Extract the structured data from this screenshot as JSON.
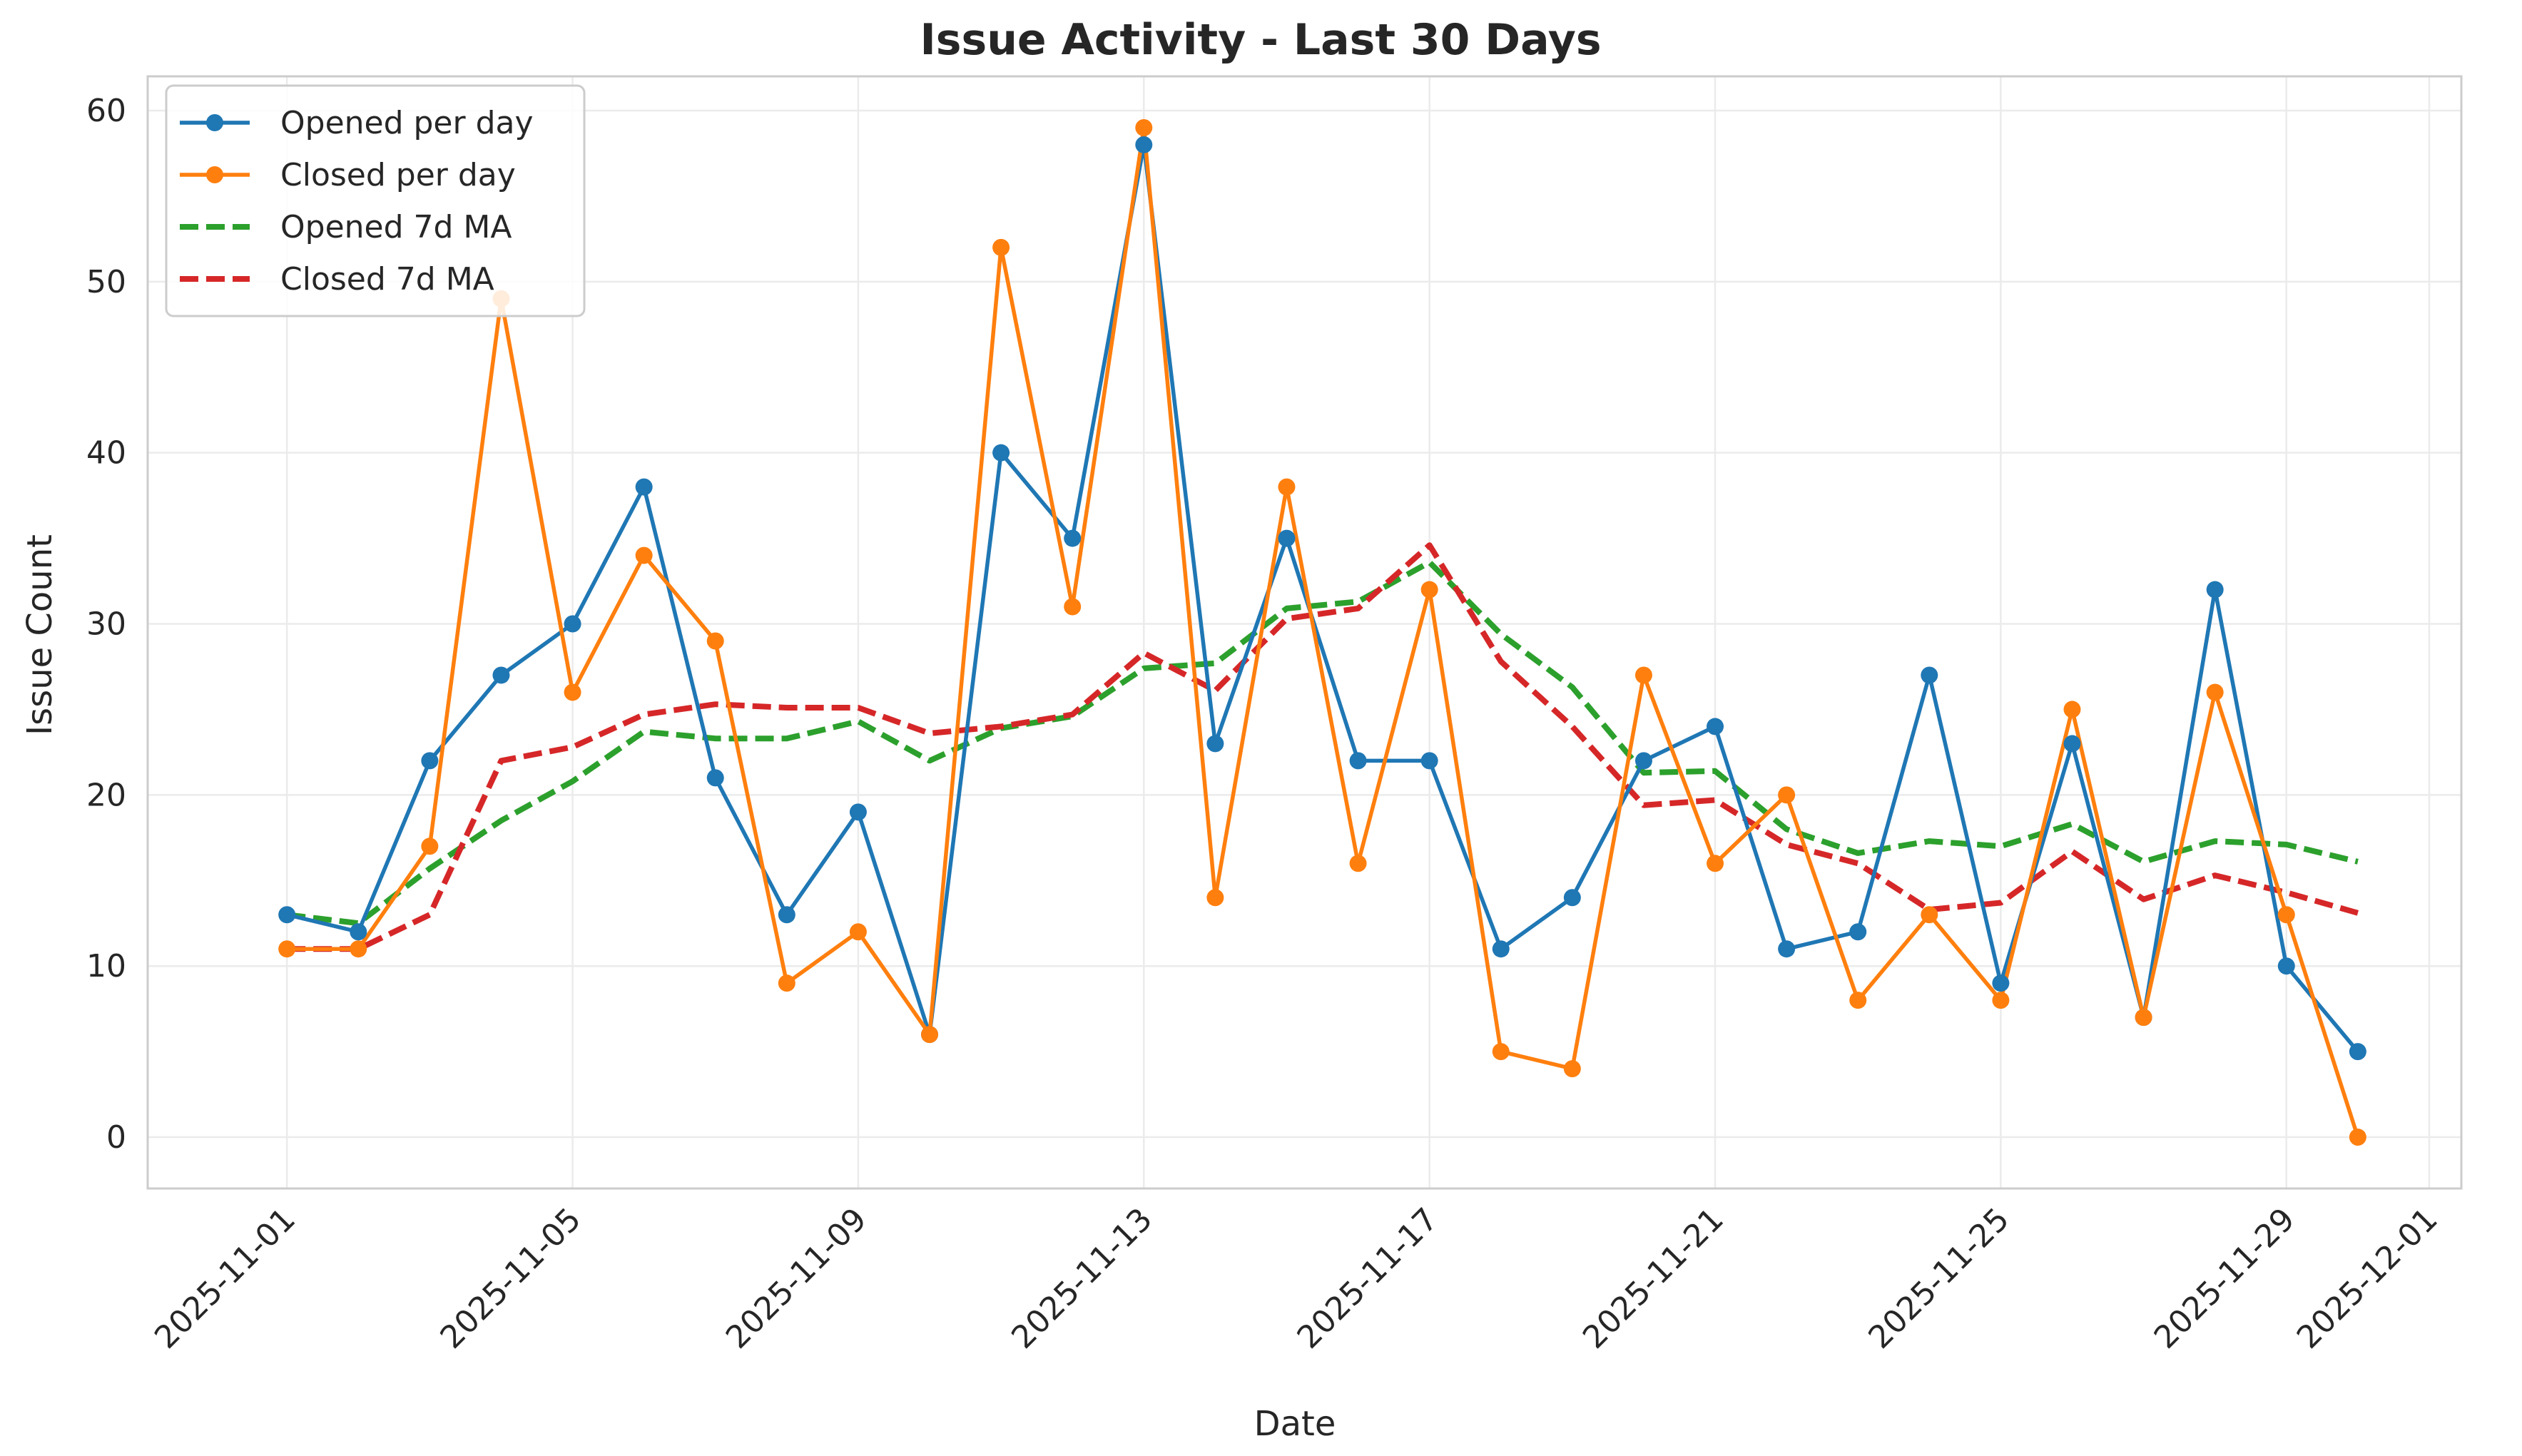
{
  "chart_data": {
    "type": "line",
    "title": "Issue Activity - Last 30 Days",
    "xlabel": "Date",
    "ylabel": "Issue Count",
    "x": [
      "2025-11-01",
      "2025-11-02",
      "2025-11-03",
      "2025-11-04",
      "2025-11-05",
      "2025-11-06",
      "2025-11-07",
      "2025-11-08",
      "2025-11-09",
      "2025-11-10",
      "2025-11-11",
      "2025-11-12",
      "2025-11-13",
      "2025-11-14",
      "2025-11-15",
      "2025-11-16",
      "2025-11-17",
      "2025-11-18",
      "2025-11-19",
      "2025-11-20",
      "2025-11-21",
      "2025-11-22",
      "2025-11-23",
      "2025-11-24",
      "2025-11-25",
      "2025-11-26",
      "2025-11-27",
      "2025-11-28",
      "2025-11-29",
      "2025-11-30"
    ],
    "xticks": [
      "2025-11-01",
      "2025-11-05",
      "2025-11-09",
      "2025-11-13",
      "2025-11-17",
      "2025-11-21",
      "2025-11-25",
      "2025-11-29",
      "2025-12-01"
    ],
    "xlim_days": [
      -1.95,
      30.45
    ],
    "ylim": [
      -3,
      62
    ],
    "yticks": [
      0,
      10,
      20,
      30,
      40,
      50,
      60
    ],
    "grid": true,
    "legend_position": "top-left",
    "series": [
      {
        "name": "Opened per day",
        "color": "#1f77b4",
        "style": "solid-marker",
        "values": [
          13,
          12,
          22,
          27,
          30,
          38,
          21,
          13,
          19,
          6,
          40,
          35,
          58,
          23,
          35,
          22,
          22,
          11,
          14,
          22,
          24,
          11,
          12,
          27,
          9,
          23,
          7,
          32,
          10,
          5
        ]
      },
      {
        "name": "Closed per day",
        "color": "#ff7f0e",
        "style": "solid-marker",
        "values": [
          11,
          11,
          17,
          49,
          26,
          34,
          29,
          9,
          12,
          6,
          52,
          31,
          59,
          14,
          38,
          16,
          32,
          5,
          4,
          27,
          16,
          20,
          8,
          13,
          8,
          25,
          7,
          26,
          13,
          0
        ]
      },
      {
        "name": "Opened 7d MA",
        "color": "#2ca02c",
        "style": "dashed",
        "values": [
          13.0,
          12.5,
          15.7,
          18.5,
          20.8,
          23.7,
          23.3,
          23.3,
          24.3,
          22.0,
          23.9,
          24.6,
          27.4,
          27.7,
          30.9,
          31.3,
          33.6,
          29.4,
          26.3,
          21.3,
          21.4,
          18.0,
          16.6,
          17.3,
          17.0,
          18.3,
          16.1,
          17.3,
          17.1,
          16.1
        ]
      },
      {
        "name": "Closed 7d MA",
        "color": "#d62728",
        "style": "dashed",
        "values": [
          11.0,
          11.0,
          13.0,
          22.0,
          22.8,
          24.7,
          25.3,
          25.1,
          25.1,
          23.6,
          24.0,
          24.7,
          28.3,
          26.1,
          30.3,
          30.9,
          34.6,
          27.8,
          24.0,
          19.4,
          19.7,
          17.1,
          16.0,
          13.3,
          13.7,
          16.7,
          13.9,
          15.3,
          14.3,
          13.1
        ]
      }
    ]
  }
}
